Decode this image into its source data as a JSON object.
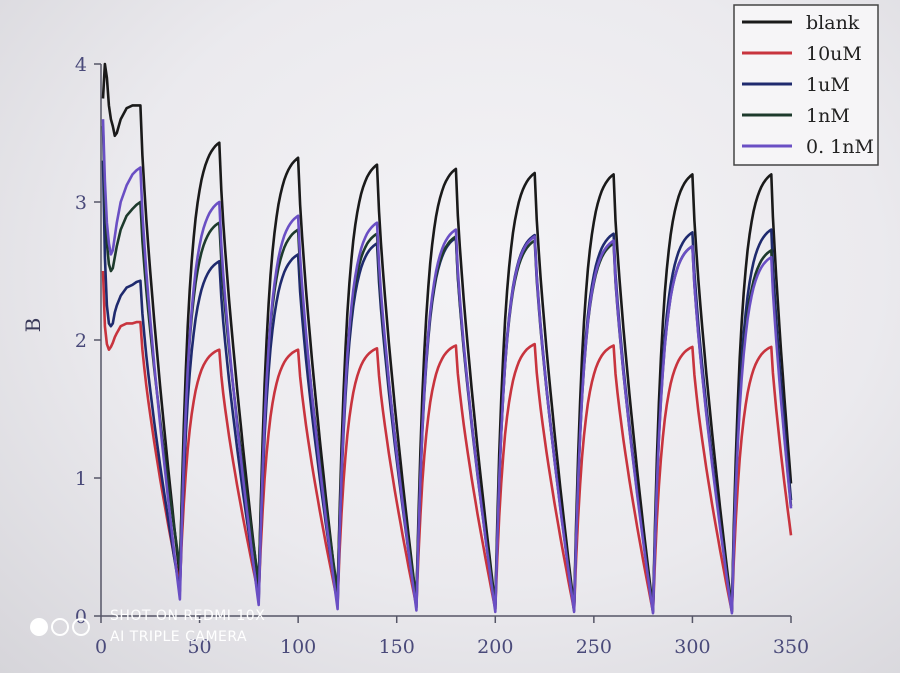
{
  "chart_data": {
    "type": "line",
    "title": "",
    "xlabel": "",
    "ylabel": "B",
    "xlim": [
      0,
      350
    ],
    "ylim": [
      0,
      4
    ],
    "x_ticks": [
      "0",
      "50",
      "100",
      "150",
      "200",
      "250",
      "300",
      "350"
    ],
    "y_ticks": [
      "0",
      "1",
      "2",
      "3",
      "4"
    ],
    "legend_position": "top-right",
    "grid": false,
    "cycle_period": 40,
    "series": [
      {
        "name": "blank",
        "color": "#1a1a1a",
        "initial": {
          "x": [
            1,
            2,
            3,
            4,
            5,
            6,
            7,
            8,
            10,
            13,
            16,
            18,
            20
          ],
          "y": [
            3.75,
            4.0,
            3.9,
            3.7,
            3.6,
            3.55,
            3.48,
            3.5,
            3.6,
            3.68,
            3.7,
            3.7,
            3.7
          ]
        },
        "peaks": [
          3.43,
          3.32,
          3.27,
          3.24,
          3.21,
          3.2,
          3.2,
          3.2
        ],
        "mins": [
          0.28,
          0.2,
          0.12,
          0.1,
          0.08,
          0.06,
          0.05,
          0.05
        ]
      },
      {
        "name": "10uM",
        "color": "#c8343e",
        "initial": {
          "x": [
            1,
            2,
            3,
            4,
            5,
            6,
            7,
            8,
            10,
            13,
            16,
            18,
            20
          ],
          "y": [
            2.5,
            2.1,
            1.97,
            1.93,
            1.95,
            1.98,
            2.02,
            2.05,
            2.1,
            2.12,
            2.12,
            2.13,
            2.13
          ]
        },
        "peaks": [
          1.93,
          1.93,
          1.94,
          1.96,
          1.97,
          1.96,
          1.95,
          1.95
        ],
        "mins": [
          0.22,
          0.15,
          0.1,
          0.07,
          0.05,
          0.04,
          0.03,
          0.03
        ]
      },
      {
        "name": "1uM",
        "color": "#1f2a6e",
        "initial": {
          "x": [
            1,
            2,
            3,
            4,
            5,
            6,
            7,
            8,
            10,
            13,
            16,
            18,
            20
          ],
          "y": [
            3.3,
            2.6,
            2.25,
            2.12,
            2.1,
            2.12,
            2.2,
            2.25,
            2.32,
            2.38,
            2.4,
            2.42,
            2.43
          ]
        },
        "peaks": [
          2.57,
          2.62,
          2.7,
          2.74,
          2.76,
          2.77,
          2.78,
          2.8
        ],
        "mins": [
          0.18,
          0.12,
          0.08,
          0.06,
          0.05,
          0.04,
          0.03,
          0.03
        ]
      },
      {
        "name": "1nM",
        "color": "#1d3a2c",
        "initial": {
          "x": [
            1,
            2,
            3,
            4,
            5,
            6,
            7,
            8,
            10,
            13,
            16,
            18,
            20
          ],
          "y": [
            3.55,
            3.0,
            2.7,
            2.55,
            2.5,
            2.52,
            2.6,
            2.68,
            2.8,
            2.9,
            2.95,
            2.98,
            3.0
          ]
        },
        "peaks": [
          2.85,
          2.8,
          2.77,
          2.75,
          2.72,
          2.7,
          2.68,
          2.65
        ],
        "mins": [
          0.35,
          0.25,
          0.18,
          0.12,
          0.08,
          0.06,
          0.05,
          0.05
        ]
      },
      {
        "name": "0. 1nM",
        "color": "#6a4fc4",
        "initial": {
          "x": [
            1,
            2,
            3,
            4,
            5,
            6,
            7,
            8,
            10,
            13,
            16,
            18,
            20
          ],
          "y": [
            3.6,
            3.15,
            2.85,
            2.7,
            2.62,
            2.65,
            2.75,
            2.85,
            3.0,
            3.12,
            3.2,
            3.23,
            3.25
          ]
        },
        "peaks": [
          3.0,
          2.9,
          2.85,
          2.8,
          2.75,
          2.72,
          2.68,
          2.6
        ],
        "mins": [
          0.12,
          0.08,
          0.05,
          0.04,
          0.03,
          0.03,
          0.02,
          0.02
        ]
      }
    ]
  },
  "watermark": {
    "line1": "SHOT ON REDMI 10X",
    "line2": "AI TRIPLE CAMERA"
  }
}
